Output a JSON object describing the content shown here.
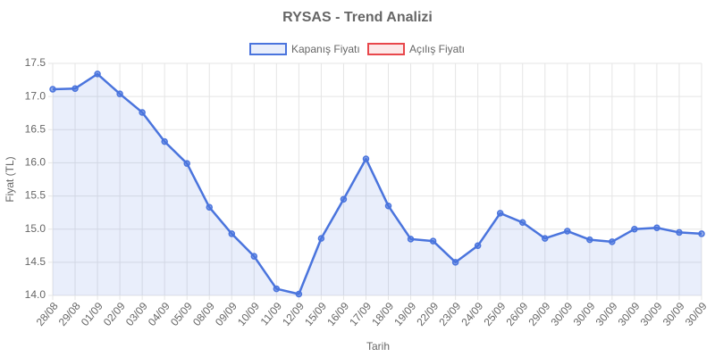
{
  "chart_data": {
    "type": "line",
    "title": "RYSAS - Trend Analizi",
    "xlabel": "Tarih",
    "ylabel": "Fiyat (TL)",
    "categories": [
      "28/08",
      "29/08",
      "01/09",
      "02/09",
      "03/09",
      "04/09",
      "05/09",
      "08/09",
      "09/09",
      "10/09",
      "11/09",
      "12/09",
      "15/09",
      "16/09",
      "17/09",
      "18/09",
      "19/09",
      "22/09",
      "23/09",
      "24/09",
      "25/09",
      "26/09",
      "29/09",
      "30/09",
      "30/09",
      "30/09",
      "30/09",
      "30/09",
      "30/09",
      "30/09"
    ],
    "series": [
      {
        "name": "Kapanış Fiyatı",
        "color": "#4a74dd",
        "values": [
          17.11,
          17.12,
          17.34,
          17.04,
          16.76,
          16.32,
          15.99,
          15.33,
          14.93,
          14.59,
          14.1,
          14.02,
          14.86,
          15.45,
          16.06,
          15.35,
          14.85,
          14.82,
          14.5,
          14.75,
          15.24,
          15.1,
          14.86,
          14.97,
          14.84,
          14.81,
          15.0,
          15.02,
          14.95,
          14.93
        ]
      },
      {
        "name": "Açılış Fiyatı",
        "color": "#e8474b",
        "values": [
          null,
          null,
          null,
          null,
          null,
          null,
          null,
          null,
          null,
          null,
          null,
          null,
          null,
          null,
          null,
          null,
          null,
          null,
          null,
          null,
          null,
          null,
          null,
          null,
          null,
          null,
          null,
          null,
          null,
          null
        ]
      }
    ],
    "ylim": [
      14,
      17.5
    ],
    "yticks": [
      {
        "value": 14,
        "label": "14.0"
      },
      {
        "value": 14.5,
        "label": "14.5"
      },
      {
        "value": 15,
        "label": "15.0"
      },
      {
        "value": 15.5,
        "label": "15.5"
      },
      {
        "value": 16,
        "label": "16.0"
      },
      {
        "value": 16.5,
        "label": "16.5"
      },
      {
        "value": 17,
        "label": "17.0"
      },
      {
        "value": 17.5,
        "label": "17.5"
      }
    ],
    "grid": true
  }
}
